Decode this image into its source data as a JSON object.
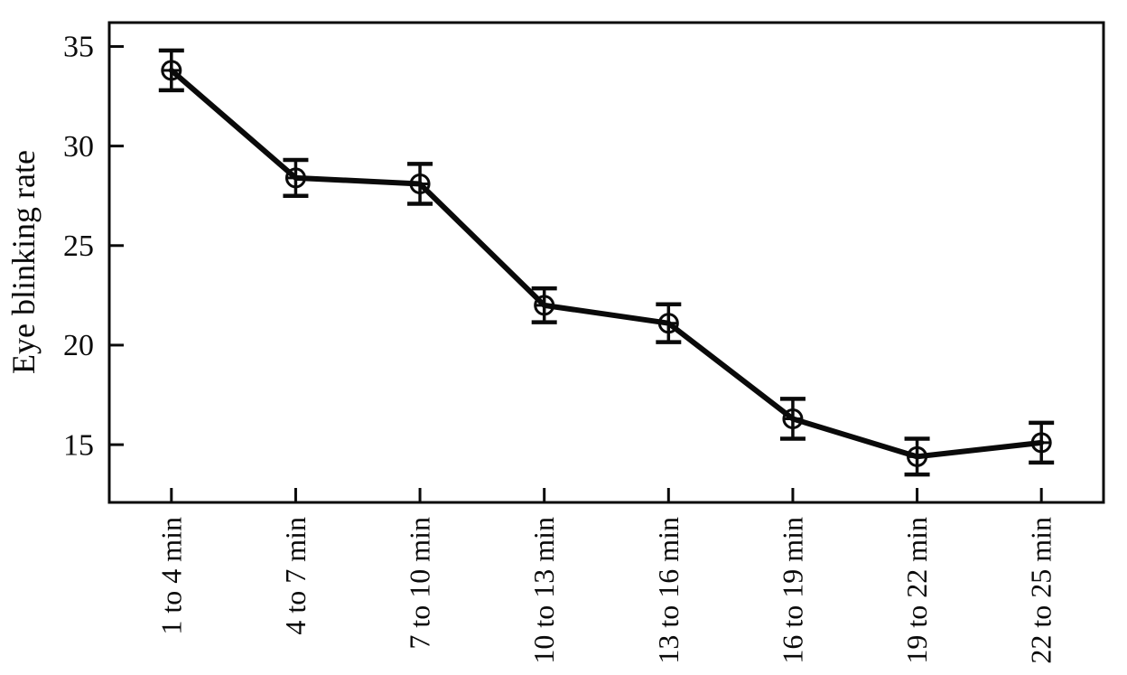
{
  "chart_data": {
    "type": "line",
    "title": "",
    "xlabel": "",
    "ylabel": "Eye blinking rate",
    "categories": [
      "1 to 4 min",
      "4 to 7 min",
      "7 to 10 min",
      "10 to 13 min",
      "13 to 16 min",
      "16 to 19 min",
      "19 to 22 min",
      "22 to 25 min"
    ],
    "series": [
      {
        "name": "Eye blinking rate",
        "values": [
          33.8,
          28.4,
          28.1,
          22.0,
          21.1,
          16.3,
          14.4,
          15.1
        ],
        "error_bars": [
          1.0,
          0.9,
          1.0,
          0.85,
          0.95,
          1.0,
          0.9,
          1.0
        ]
      }
    ],
    "yticks": [
      15,
      20,
      25,
      30,
      35
    ],
    "ylim": [
      12.1,
      36.2
    ],
    "grid": false,
    "legend": false,
    "marker": "circle-plus",
    "line_color": "#0a0a0a",
    "text_color": "#0a0a0a",
    "background": "#ffffff"
  }
}
